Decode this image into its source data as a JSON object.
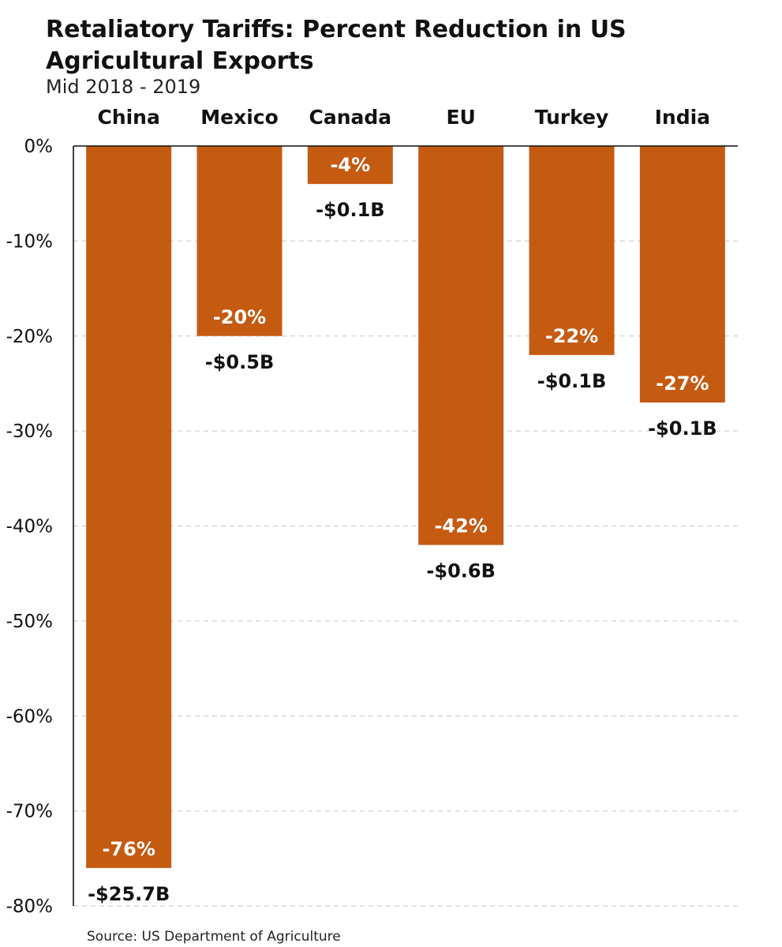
{
  "chart_data": {
    "type": "bar",
    "title": "Retaliatory Tariffs: Percent Reduction in US Agricultural Exports",
    "subtitle": "Mid 2018 - 2019",
    "source": "Source: US Department of Agriculture",
    "categories": [
      "China",
      "Mexico",
      "Canada",
      "EU",
      "Turkey",
      "India"
    ],
    "values": [
      -76,
      -20,
      -4,
      -42,
      -22,
      -27
    ],
    "bar_labels": [
      "-76%",
      "-20%",
      "-4%",
      "-42%",
      "-22%",
      "-27%"
    ],
    "dollar_labels": [
      "-$25.7B",
      "-$0.5B",
      "-$0.1B",
      "-$0.6B",
      "-$0.1B",
      "-$0.1B"
    ],
    "y_ticks": [
      0,
      -10,
      -20,
      -30,
      -40,
      -50,
      -60,
      -70,
      -80
    ],
    "y_tick_labels": [
      "0%",
      "-10%",
      "-20%",
      "-30%",
      "-40%",
      "-50%",
      "-60%",
      "-70%",
      "-80%"
    ],
    "ylim": [
      -80,
      0
    ],
    "xlabel": "",
    "ylabel": "",
    "grid": true,
    "category_axis_position": "top",
    "bar_color": "#c55a11",
    "grid_color": "#d0d0d0"
  }
}
